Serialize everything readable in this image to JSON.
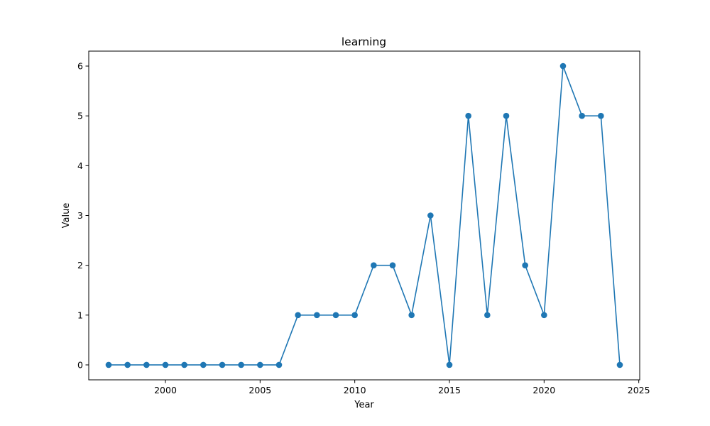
{
  "chart_data": {
    "type": "line",
    "title": "learning",
    "xlabel": "Year",
    "ylabel": "Value",
    "xlim": [
      1995.95,
      2025.05
    ],
    "ylim": [
      -0.3,
      6.3
    ],
    "xticks": [
      2000,
      2005,
      2010,
      2015,
      2020,
      2025
    ],
    "yticks": [
      0,
      1,
      2,
      3,
      4,
      5,
      6
    ],
    "grid": false,
    "color": "#1f77b4",
    "marker": "circle",
    "series": [
      {
        "x": [
          1997,
          1998,
          1999,
          2000,
          2001,
          2002,
          2003,
          2004,
          2005,
          2006,
          2007,
          2008,
          2009,
          2010,
          2011,
          2012,
          2013,
          2014,
          2015,
          2016,
          2017,
          2018,
          2019,
          2020,
          2021,
          2022,
          2023,
          2024
        ],
        "y": [
          0,
          0,
          0,
          0,
          0,
          0,
          0,
          0,
          0,
          0,
          1,
          1,
          1,
          1,
          2,
          2,
          1,
          3,
          0,
          5,
          1,
          5,
          2,
          1,
          6,
          5,
          5,
          0
        ]
      }
    ]
  }
}
